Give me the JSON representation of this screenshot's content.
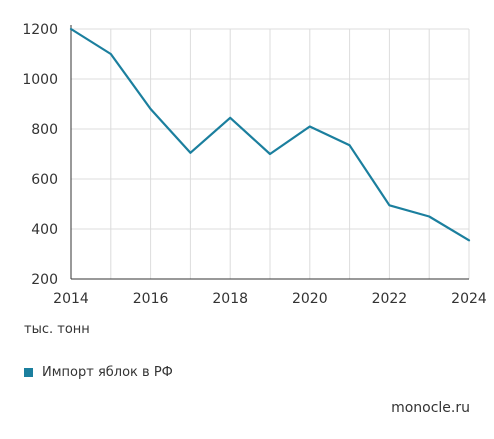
{
  "chart_data": {
    "type": "line",
    "x": [
      2014,
      2015,
      2016,
      2017,
      2018,
      2019,
      2020,
      2021,
      2022,
      2023,
      2024
    ],
    "series": [
      {
        "name": "Импорт яблок в РФ",
        "values": [
          1200,
          1100,
          880,
          705,
          845,
          700,
          810,
          735,
          495,
          450,
          355
        ],
        "color": "#1b7f9e"
      }
    ],
    "x_ticks": [
      2014,
      2016,
      2018,
      2020,
      2022,
      2024
    ],
    "y_ticks": [
      200,
      400,
      600,
      800,
      1000,
      1200
    ],
    "xlim": [
      2014,
      2024
    ],
    "ylim": [
      200,
      1200
    ],
    "unit_label": "тыс. тонн",
    "grid": true,
    "legend_position": "bottom-left"
  },
  "source": "monocle.ru",
  "colors": {
    "line": "#1b7f9e",
    "grid": "#dcdcdc",
    "axis": "#333333"
  }
}
